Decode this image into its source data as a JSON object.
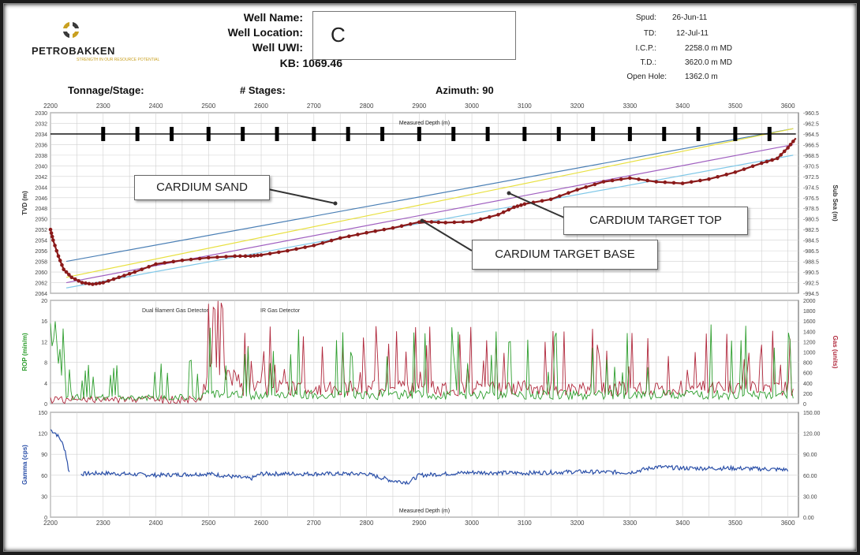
{
  "header": {
    "company": "PETROBAKKEN",
    "tagline": "STRENGTH IN OUR RESOURCE POTENTIAL",
    "well_name_label": "Well Name:",
    "well_location_label": "Well Location:",
    "well_uwi_label": "Well UWI:",
    "kb_text": "KB: 1069.46",
    "well_box_value": "C",
    "spud_label": "Spud:",
    "spud_value": "26-Jun-11",
    "td_label": "TD:",
    "td_value": "12-Jul-11",
    "icp_label": "I.C.P.:",
    "icp_value": "2258.0 m MD",
    "td2_label": "T.D.:",
    "td2_value": "3620.0 m MD",
    "open_hole_label": "Open Hole:",
    "open_hole_value": "1362.0 m",
    "tonnage_label": "Tonnage/Stage:",
    "stages_label": "# Stages:",
    "azimuth_label": "Azimuth: 90"
  },
  "callouts": {
    "sand": "CARDIUM SAND",
    "top": "CARDIUM TARGET  TOP",
    "base": "CARDIUM TARGET BASE"
  },
  "colors": {
    "wellpath": "#8b1a1a",
    "sand_top": "#4a7fb5",
    "sand_yellow": "#e8e040",
    "target_top": "#a060c0",
    "target_base": "#80c8e8",
    "rop": "#2e9e2e",
    "gas": "#b0283c",
    "gamma": "#2a4fa8",
    "grid": "#d0d0d0"
  },
  "chart_data": [
    {
      "type": "line",
      "name": "TVD panel",
      "xlabel": "Measured Depth (m)",
      "ylabel": "TVD (m)",
      "ylabel_right": "Sub Sea (m)",
      "xlim": [
        2200,
        3620
      ],
      "ylim": [
        2030,
        2064
      ],
      "ylim_right": [
        -960.5,
        -994.5
      ],
      "x_ticks": [
        2200,
        2300,
        2400,
        2500,
        2600,
        2700,
        2800,
        2900,
        3000,
        3100,
        3200,
        3300,
        3400,
        3500,
        3600
      ],
      "y_ticks": [
        2030,
        2032,
        2034,
        2036,
        2038,
        2040,
        2042,
        2044,
        2046,
        2048,
        2050,
        2052,
        2054,
        2056,
        2058,
        2060,
        2062,
        2064
      ],
      "y_ticks_right": [
        "-960.5",
        "-962.5",
        "-964.5",
        "-966.5",
        "-968.5",
        "-970.5",
        "-972.5",
        "-974.5",
        "-976.5",
        "-978.5",
        "-980.5",
        "-982.5",
        "-984.5",
        "-986.5",
        "-988.5",
        "-990.5",
        "-992.5",
        "-994.5"
      ],
      "grid": true,
      "stage_markers_depth": 2034,
      "stage_markers": [
        2300,
        2365,
        2430,
        2500,
        2565,
        2630,
        2700,
        2765,
        2830,
        2900,
        2965,
        3030,
        3100,
        3165,
        3230,
        3300,
        3365,
        3430,
        3500,
        3565
      ],
      "series": [
        {
          "x": [
            2200,
            2205,
            2215,
            2225,
            2240,
            2260,
            2280,
            2300,
            2330,
            2360,
            2400,
            2450,
            2500,
            2550,
            2580,
            2600,
            2650,
            2700,
            2750,
            2800,
            2850,
            2900,
            2910,
            2950,
            3000,
            3050,
            3080,
            3100,
            3150,
            3200,
            3250,
            3300,
            3350,
            3400,
            3450,
            3500,
            3550,
            3580,
            3600,
            3615
          ],
          "y": [
            2052,
            2054,
            2057,
            2059.5,
            2061,
            2062,
            2062.3,
            2062,
            2061,
            2060,
            2058.5,
            2057.8,
            2057.3,
            2057,
            2057,
            2056.8,
            2056,
            2055,
            2053.6,
            2052.6,
            2051.7,
            2050.6,
            2050.5,
            2050.7,
            2050.5,
            2049.2,
            2047.8,
            2047.2,
            2046.3,
            2044.5,
            2043,
            2042.3,
            2043,
            2043.3,
            2042.5,
            2041.2,
            2039.5,
            2038.6,
            2036.6,
            2034.8
          ]
        },
        {
          "x": [
            2230,
            3610
          ],
          "y": [
            2058,
            2033
          ]
        },
        {
          "x": [
            2230,
            3610
          ],
          "y": [
            2061,
            2033
          ]
        },
        {
          "x": [
            2230,
            3610
          ],
          "y": [
            2062,
            2036
          ]
        },
        {
          "x": [
            2230,
            3610
          ],
          "y": [
            2063,
            2038
          ]
        }
      ]
    },
    {
      "type": "line",
      "name": "ROP / Gas panel",
      "ylabel": "ROP (min/m)",
      "ylabel_right": "Gas (units)",
      "xlim": [
        2200,
        3620
      ],
      "ylim": [
        0,
        20
      ],
      "ylim_right": [
        0,
        2000
      ],
      "y_ticks": [
        0,
        4,
        8,
        12,
        16,
        20
      ],
      "y_ticks_right": [
        0,
        200,
        400,
        600,
        800,
        1000,
        1200,
        1400,
        1600,
        1800,
        2000
      ],
      "annotations": [
        "Dual filament Gas Detector",
        "IR Gas Detector"
      ]
    },
    {
      "type": "line",
      "name": "Gamma panel",
      "xlabel": "Measured Depth (m)",
      "ylabel": "Gamma (cps)",
      "xlim": [
        2200,
        3620
      ],
      "ylim": [
        0,
        150
      ],
      "y_ticks": [
        0,
        30,
        60,
        90,
        120,
        150
      ],
      "y_ticks_right": [
        "0.00",
        "30.00",
        "60.00",
        "90.00",
        "120.00",
        "150.00"
      ],
      "x_ticks": [
        2200,
        2300,
        2400,
        2500,
        2600,
        2700,
        2800,
        2900,
        3000,
        3100,
        3200,
        3300,
        3400,
        3500,
        3600
      ],
      "series": [
        {
          "x": [
            2200,
            2210,
            2220,
            2228,
            2235,
            2245,
            2260,
            2300,
            2400,
            2500,
            2580,
            2600,
            2700,
            2800,
            2850,
            2880,
            2900,
            3000,
            3100,
            3200,
            3300,
            3350,
            3400,
            3500,
            3600
          ],
          "y": [
            125,
            120,
            110,
            95,
            65,
            60,
            62,
            63,
            60,
            62,
            55,
            62,
            62,
            62,
            52,
            50,
            60,
            64,
            63,
            65,
            64,
            72,
            70,
            70,
            68
          ]
        }
      ]
    }
  ]
}
